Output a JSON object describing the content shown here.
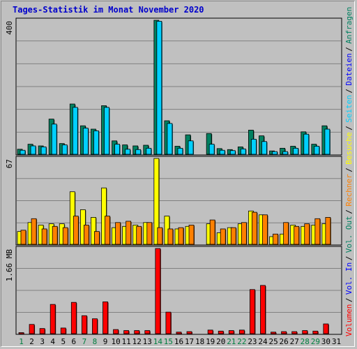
{
  "title": "Tages-Statistik im Monat November 2020",
  "colors": {
    "hits": "#008060",
    "files": "#0000ff",
    "sites": "#00d0ff",
    "visits": "#ffff00",
    "kbytes_out": "#ff8000",
    "volume": "#ff0000",
    "weekend_label": "#008040",
    "weekday_label": "#000080",
    "grid": "#808080"
  },
  "right_labels": {
    "top": [
      {
        "text": "Anfragen",
        "color": "#008060"
      },
      {
        "text": "Dateien",
        "color": "#0000ff"
      },
      {
        "text": "Seiten",
        "color": "#00d0ff"
      },
      {
        "text": "Besuche",
        "color": "#ffff00"
      },
      {
        "text": "Rechner",
        "color": "#ff8000"
      },
      {
        "text": "Vol. Out",
        "color": "#008060"
      },
      {
        "text": "Vol. In",
        "color": "#0000ff"
      },
      {
        "text": "Volumen",
        "color": "#ff0000"
      }
    ]
  },
  "chart_data": [
    {
      "type": "bar",
      "panel": "requests",
      "y_max_label": "400",
      "ylim": [
        0,
        400
      ],
      "categories": [
        "1",
        "2",
        "3",
        "4",
        "5",
        "6",
        "7",
        "8",
        "9",
        "10",
        "11",
        "12",
        "13",
        "14",
        "15",
        "16",
        "17",
        "18",
        "19",
        "20",
        "21",
        "22",
        "23",
        "24",
        "25",
        "26",
        "27",
        "28",
        "29",
        "30",
        "31"
      ],
      "weekend_days": [
        1,
        7,
        8,
        14,
        15,
        21,
        22,
        28,
        29
      ],
      "series": [
        {
          "name": "Anfragen",
          "values": [
            15,
            30,
            25,
            105,
            32,
            150,
            85,
            75,
            145,
            40,
            28,
            25,
            27,
            400,
            100,
            24,
            58,
            0,
            62,
            17,
            14,
            22,
            72,
            55,
            10,
            18,
            24,
            67,
            30,
            85,
            0
          ]
        },
        {
          "name": "Dateien",
          "values": [
            12,
            25,
            22,
            90,
            28,
            140,
            78,
            70,
            140,
            30,
            15,
            14,
            18,
            397,
            92,
            18,
            40,
            0,
            30,
            12,
            11,
            16,
            45,
            38,
            8,
            8,
            18,
            60,
            24,
            75,
            0
          ]
        }
      ]
    },
    {
      "type": "bar",
      "panel": "visits",
      "y_max_label": "67",
      "ylim": [
        0,
        67
      ],
      "categories": [
        "1",
        "2",
        "3",
        "4",
        "5",
        "6",
        "7",
        "8",
        "9",
        "10",
        "11",
        "12",
        "13",
        "14",
        "15",
        "16",
        "17",
        "18",
        "19",
        "20",
        "21",
        "22",
        "23",
        "24",
        "25",
        "26",
        "27",
        "28",
        "29",
        "30",
        "31"
      ],
      "series": [
        {
          "name": "Besuche",
          "values": [
            10,
            17,
            15,
            16,
            16,
            41,
            27,
            21,
            44,
            13,
            14,
            15,
            17,
            67,
            22,
            12,
            14,
            0,
            16,
            9,
            13,
            16,
            26,
            23,
            6,
            8,
            15,
            14,
            15,
            16,
            0
          ]
        },
        {
          "name": "Rechner",
          "values": [
            11,
            20,
            12,
            14,
            13,
            22,
            15,
            10,
            22,
            17,
            18,
            14,
            17,
            13,
            12,
            13,
            15,
            0,
            19,
            12,
            13,
            17,
            25,
            23,
            8,
            17,
            14,
            16,
            20,
            21,
            0
          ]
        }
      ]
    },
    {
      "type": "bar",
      "panel": "volume",
      "y_max_label": "1.66 MB",
      "ylim": [
        0,
        1.66
      ],
      "categories": [
        "1",
        "2",
        "3",
        "4",
        "5",
        "6",
        "7",
        "8",
        "9",
        "10",
        "11",
        "12",
        "13",
        "14",
        "15",
        "16",
        "17",
        "18",
        "19",
        "20",
        "21",
        "22",
        "23",
        "24",
        "25",
        "26",
        "27",
        "28",
        "29",
        "30",
        "31"
      ],
      "series": [
        {
          "name": "Volumen",
          "values": [
            0.02,
            0.18,
            0.1,
            0.57,
            0.11,
            0.61,
            0.35,
            0.29,
            0.62,
            0.08,
            0.06,
            0.06,
            0.06,
            1.66,
            0.42,
            0.03,
            0.04,
            0.0,
            0.07,
            0.05,
            0.06,
            0.07,
            0.86,
            0.94,
            0.03,
            0.04,
            0.04,
            0.06,
            0.05,
            0.19,
            0.0
          ]
        }
      ]
    }
  ]
}
